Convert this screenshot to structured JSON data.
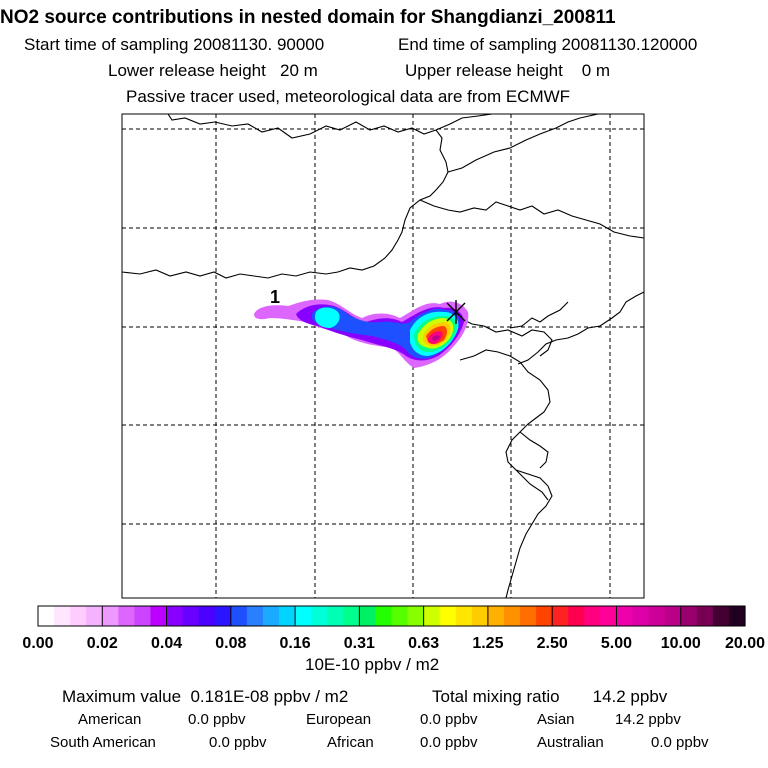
{
  "title": "NO2 source contributions in nested domain for Shangdianzi_200811",
  "header": {
    "start_label": "Start time of sampling 20081130. 90000",
    "end_label": "End time of sampling 20081130.120000",
    "lower_label": "Lower release height   20 m",
    "upper_label": "Upper release height    0 m",
    "tracer_note": "Passive tracer used, meteorological data are from ECMWF"
  },
  "map": {
    "source_label": "1",
    "station_marker": "station-star-icon",
    "gridline_color": "#000000"
  },
  "chart_data": {
    "type": "heatmap",
    "title": "NO2 source contributions in nested domain for Shangdianzi_200811",
    "colorbar": {
      "unit": "10E-10 ppbv / m2",
      "tick_labels": [
        "0.00",
        "0.02",
        "0.04",
        "0.08",
        "0.16",
        "0.31",
        "0.63",
        "1.25",
        "2.50",
        "5.00",
        "10.00",
        "20.00"
      ],
      "colors": [
        "#ffffff",
        "#ffe6ff",
        "#ffccff",
        "#f5b3ff",
        "#ee99ff",
        "#dd66ff",
        "#cc44ff",
        "#bb00ff",
        "#8800ff",
        "#6a00ff",
        "#4c00ff",
        "#2b14ff",
        "#1e50ff",
        "#2a7fff",
        "#1aaaff",
        "#00d4ff",
        "#00ffff",
        "#00ffd8",
        "#00ffb4",
        "#00ff8c",
        "#00f064",
        "#22ff00",
        "#55ff00",
        "#88ff00",
        "#ccff00",
        "#ffff00",
        "#ffe600",
        "#ffcc00",
        "#ffb000",
        "#ff9000",
        "#ff6e00",
        "#ff4400",
        "#ff2222",
        "#ff0050",
        "#ff0080",
        "#ff0099",
        "#ee00aa",
        "#dd00aa",
        "#cc0099",
        "#bb0088",
        "#99006e",
        "#770055",
        "#440033",
        "#220022"
      ]
    },
    "plume_levels": [
      {
        "level": "0.02-0.04",
        "color": "#dd66ff"
      },
      {
        "level": "0.04-0.08",
        "color": "#8800ff"
      },
      {
        "level": "0.08-0.16",
        "color": "#1e50ff"
      },
      {
        "level": "0.16-0.31",
        "color": "#00ffff"
      },
      {
        "level": "0.31-0.63",
        "color": "#00ff8c"
      },
      {
        "level": "0.63-1.25",
        "color": "#ccff00"
      },
      {
        "level": "1.25-2.50",
        "color": "#ffcc00"
      },
      {
        "level": "2.50-5.00",
        "color": "#ff4400"
      },
      {
        "level": "5.00-10.00",
        "color": "#ff0080"
      },
      {
        "level": "10.00-20.00",
        "color": "#bb0088"
      }
    ]
  },
  "summary": {
    "max_value": "Maximum value  0.181E-08 ppbv / m2",
    "total": "Total mixing ratio       14.2 ppbv",
    "american_label": "American",
    "american_value": "0.0 ppbv",
    "european_label": "European",
    "european_value": "0.0 ppbv",
    "asian_label": "Asian",
    "asian_value": "14.2 ppbv",
    "south_american_label": "South American",
    "south_american_value": "0.0 ppbv",
    "african_label": "African",
    "african_value": "0.0 ppbv",
    "australian_label": "Australian",
    "australian_value": "0.0 ppbv"
  }
}
